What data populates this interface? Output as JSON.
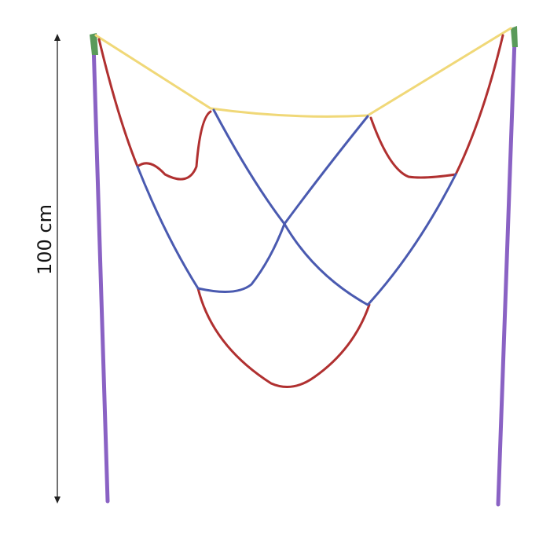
{
  "dimension_label": "100 cm"
}
